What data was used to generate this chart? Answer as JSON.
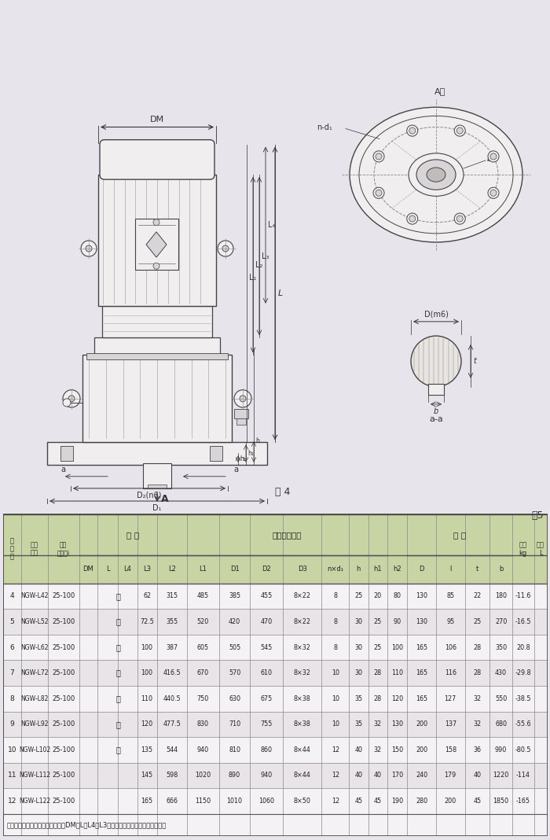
{
  "bg_color": "#e8e4ec",
  "draw_bg": "#e8e4ec",
  "line_color": "#444444",
  "dim_color": "#333333",
  "fill_light": "#f0eeee",
  "fill_mid": "#d8d4d8",
  "fill_dark": "#c0bcbc",
  "table_data": [
    [
      "4",
      "NGW-L42",
      "25-100",
      "62",
      "315",
      "485",
      "385",
      "455",
      "8×22",
      "8",
      "25",
      "20",
      "80",
      "130",
      "85",
      "22",
      "180",
      "-11.6"
    ],
    [
      "5",
      "NGW-L52",
      "25-100",
      "72.5",
      "355",
      "520",
      "420",
      "470",
      "8×22",
      "8",
      "30",
      "25",
      "90",
      "130",
      "95",
      "25",
      "270",
      "-16.5"
    ],
    [
      "6",
      "NGW-L62",
      "25-100",
      "100",
      "387",
      "605",
      "505",
      "545",
      "8×32",
      "8",
      "30",
      "25",
      "100",
      "165",
      "106",
      "28",
      "350",
      "20.8"
    ],
    [
      "7",
      "NGW-L72",
      "25-100",
      "100",
      "416.5",
      "670",
      "570",
      "610",
      "8×32",
      "10",
      "30",
      "28",
      "110",
      "165",
      "116",
      "28",
      "430",
      "-29.8"
    ],
    [
      "8",
      "NGW-L82",
      "25-100",
      "110",
      "440.5",
      "750",
      "630",
      "675",
      "8×38",
      "10",
      "35",
      "28",
      "120",
      "165",
      "127",
      "32",
      "550",
      "-38.5"
    ],
    [
      "9",
      "NGW-L92",
      "25-100",
      "120",
      "477.5",
      "830",
      "710",
      "755",
      "8×38",
      "10",
      "35",
      "32",
      "130",
      "200",
      "137",
      "32",
      "680",
      "-55.6"
    ],
    [
      "10",
      "NGW-L102",
      "25-100",
      "135",
      "544",
      "940",
      "810",
      "860",
      "8×44",
      "12",
      "40",
      "32",
      "150",
      "200",
      "158",
      "36",
      "990",
      "-80.5"
    ],
    [
      "11",
      "NGW-L112",
      "25-100",
      "145",
      "598",
      "1020",
      "890",
      "940",
      "8×44",
      "12",
      "40",
      "40",
      "170",
      "240",
      "179",
      "40",
      "1220",
      "-114"
    ],
    [
      "12",
      "NGW-L122",
      "25-100",
      "165",
      "666",
      "1150",
      "1010",
      "1060",
      "8×50",
      "12",
      "45",
      "45",
      "190",
      "280",
      "200",
      "45",
      "1850",
      "-165"
    ]
  ],
  "motor_chars": [
    "按",
    "所",
    "配",
    "电",
    "机",
    "确",
    "定",
    "",
    ""
  ],
  "note": "注：所配电机型号规格确定后再定DM、L、L4及L3之尺寸。表中重量不包括电机重量",
  "table5": "表5",
  "fig4": "图 4"
}
